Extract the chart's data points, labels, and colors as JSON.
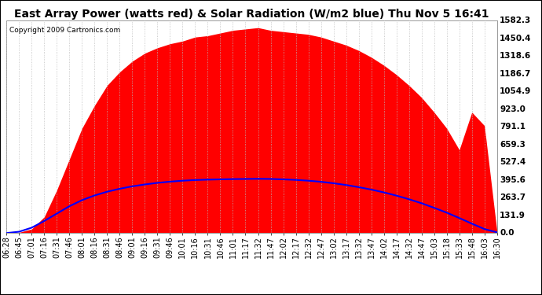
{
  "title": "East Array Power (watts red) & Solar Radiation (W/m2 blue) Thu Nov 5 16:41",
  "copyright": "Copyright 2009 Cartronics.com",
  "y_max": 1582.3,
  "y_ticks": [
    0.0,
    131.9,
    263.7,
    395.6,
    527.4,
    659.3,
    791.1,
    923.0,
    1054.9,
    1186.7,
    1318.6,
    1450.4,
    1582.3
  ],
  "y_tick_labels": [
    "0.0",
    "131.9",
    "263.7",
    "395.6",
    "527.4",
    "659.3",
    "791.1",
    "923.0",
    "1054.9",
    "1186.7",
    "1318.6",
    "1450.4",
    "1582.3"
  ],
  "x_labels": [
    "06:28",
    "06:45",
    "07:01",
    "07:16",
    "07:31",
    "07:46",
    "08:01",
    "08:16",
    "08:31",
    "08:46",
    "09:01",
    "09:16",
    "09:31",
    "09:46",
    "10:01",
    "10:16",
    "10:31",
    "10:46",
    "11:01",
    "11:17",
    "11:32",
    "11:47",
    "12:02",
    "12:17",
    "12:32",
    "12:47",
    "13:02",
    "13:17",
    "13:32",
    "13:47",
    "14:02",
    "14:17",
    "14:32",
    "14:47",
    "15:03",
    "15:18",
    "15:33",
    "15:48",
    "16:03",
    "16:30"
  ],
  "bg_color": "#ffffff",
  "plot_bg_color": "#ffffff",
  "red_color": "#ff0000",
  "blue_color": "#0000ff",
  "grid_color": "#bbbbbb",
  "title_fontsize": 10,
  "tick_fontsize": 7,
  "copyright_fontsize": 6.5
}
